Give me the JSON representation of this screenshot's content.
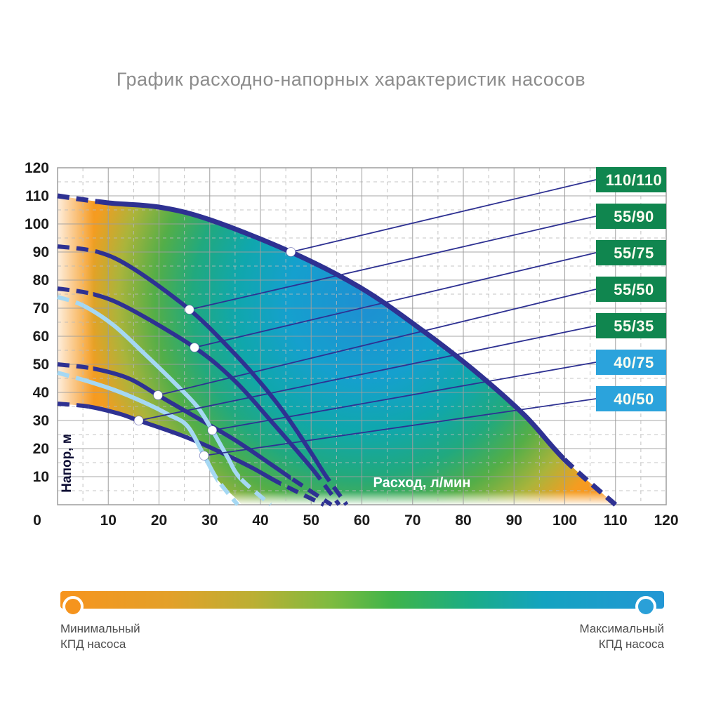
{
  "title": "График расходно-напорных характеристик насосов",
  "colors": {
    "navy_curve": "#2E3192",
    "light_blue_curve": "#A5D8F3",
    "legend_green": "#10864F",
    "legend_blue": "#2BA3DC",
    "legend_text": "#FDFDF0",
    "grid_major": "#9E9E9E",
    "grid_minor": "#BABABA",
    "tick_text": "#1A1A1A",
    "y_axis_label_color": "#0D0D33",
    "x_axis_label_color": "#FFFFFF",
    "title_gray": "#8C8C8C",
    "marker_fill": "#FFFFFF",
    "min_dot_orange": "#F5941E",
    "max_dot_blue": "#2AA0D8"
  },
  "axes": {
    "x": {
      "label": "Расход, л/мин",
      "range": [
        0,
        120
      ],
      "ticks": [
        0,
        10,
        20,
        30,
        40,
        50,
        60,
        70,
        80,
        90,
        100,
        110,
        120
      ],
      "minor_step": 5
    },
    "y": {
      "label": "Напор, м",
      "range": [
        0,
        120
      ],
      "ticks": [
        10,
        20,
        30,
        40,
        50,
        60,
        70,
        80,
        90,
        100,
        110,
        120
      ],
      "minor_step": 5
    }
  },
  "legend": [
    {
      "label": "110/110",
      "color": "green"
    },
    {
      "label": "55/90",
      "color": "green"
    },
    {
      "label": "55/75",
      "color": "green"
    },
    {
      "label": "55/50",
      "color": "green"
    },
    {
      "label": "55/35",
      "color": "green"
    },
    {
      "label": "40/75",
      "color": "blue"
    },
    {
      "label": "40/50",
      "color": "blue"
    }
  ],
  "chart_data": {
    "type": "line",
    "title": "График расходно-напорных характеристик насосов",
    "xlabel": "Расход, л/мин",
    "ylabel": "Напор, м",
    "x_range": [
      0,
      120
    ],
    "y_range": [
      0,
      120
    ],
    "grid": "on",
    "legend_position": "right",
    "series": [
      {
        "name": "110/110",
        "group": "green",
        "dash_head_until": 8,
        "dash_tail_from": 100,
        "marker": [
          46,
          90
        ],
        "points": [
          [
            0,
            110
          ],
          [
            10,
            107.5
          ],
          [
            20,
            106
          ],
          [
            30,
            101.5
          ],
          [
            46,
            90
          ],
          [
            60,
            77
          ],
          [
            72,
            62
          ],
          [
            82,
            48
          ],
          [
            92,
            32
          ],
          [
            100,
            16
          ],
          [
            110,
            0
          ]
        ]
      },
      {
        "name": "55/90",
        "group": "green",
        "dash_head_until": 8,
        "dash_tail_from": 53,
        "marker": [
          26,
          69.5
        ],
        "points": [
          [
            0,
            92
          ],
          [
            8,
            90
          ],
          [
            15,
            84
          ],
          [
            26,
            69.5
          ],
          [
            34,
            55.5
          ],
          [
            40,
            43.5
          ],
          [
            45,
            32
          ],
          [
            50,
            18.5
          ],
          [
            53,
            10
          ],
          [
            57,
            0
          ]
        ]
      },
      {
        "name": "55/75",
        "group": "green",
        "dash_head_until": 7,
        "dash_tail_from": 51,
        "marker": [
          27,
          56
        ],
        "points": [
          [
            0,
            77
          ],
          [
            7,
            75
          ],
          [
            14,
            70
          ],
          [
            27,
            56
          ],
          [
            35,
            44
          ],
          [
            42,
            30
          ],
          [
            48,
            17.5
          ],
          [
            51,
            11
          ],
          [
            55.5,
            0
          ]
        ]
      },
      {
        "name": "55/50",
        "group": "green",
        "dash_head_until": 7,
        "dash_tail_from": 46,
        "marker": [
          19.8,
          39
        ],
        "points": [
          [
            0,
            50
          ],
          [
            7,
            48.5
          ],
          [
            14,
            45
          ],
          [
            19.8,
            39
          ],
          [
            27,
            31.5
          ],
          [
            35,
            23
          ],
          [
            42,
            14.5
          ],
          [
            46,
            9.5
          ],
          [
            54,
            0
          ]
        ]
      },
      {
        "name": "55/35",
        "group": "green",
        "dash_head_until": 6,
        "dash_tail_from": 44,
        "marker": [
          16,
          30
        ],
        "points": [
          [
            0,
            36
          ],
          [
            6,
            35
          ],
          [
            12,
            32.5
          ],
          [
            16,
            30
          ],
          [
            24,
            25
          ],
          [
            30,
            20.5
          ],
          [
            38,
            13.5
          ],
          [
            44,
            7.5
          ],
          [
            52.5,
            0
          ]
        ]
      },
      {
        "name": "40/75",
        "group": "blue",
        "dash_head_until": 5,
        "dash_tail_from": 36,
        "marker": [
          30.5,
          26.5
        ],
        "points": [
          [
            0,
            74
          ],
          [
            5,
            71
          ],
          [
            11,
            64
          ],
          [
            17,
            54
          ],
          [
            23,
            43.5
          ],
          [
            27.5,
            35
          ],
          [
            30.5,
            26.5
          ],
          [
            33.5,
            17
          ],
          [
            36,
            9.5
          ],
          [
            42,
            0
          ]
        ]
      },
      {
        "name": "40/50",
        "group": "blue",
        "dash_head_until": 5,
        "dash_tail_from": 31.5,
        "marker": [
          28.9,
          17.5
        ],
        "points": [
          [
            0,
            47
          ],
          [
            5,
            44.5
          ],
          [
            11,
            41
          ],
          [
            17,
            36.5
          ],
          [
            22,
            32
          ],
          [
            25.6,
            28
          ],
          [
            28.9,
            17.5
          ],
          [
            31.5,
            9
          ],
          [
            35.5,
            0
          ]
        ]
      }
    ],
    "efficiency_region": {
      "boundary": [
        [
          0,
          110
        ],
        [
          10,
          107.5
        ],
        [
          20,
          106
        ],
        [
          30,
          101.5
        ],
        [
          46,
          90
        ],
        [
          60,
          77
        ],
        [
          72,
          62
        ],
        [
          82,
          48
        ],
        [
          92,
          32
        ],
        [
          100,
          16
        ],
        [
          110,
          0
        ],
        [
          110,
          0
        ],
        [
          36.5,
          0
        ],
        [
          36.5,
          0
        ],
        [
          31.5,
          9
        ],
        [
          28.9,
          17.5
        ],
        [
          26.5,
          24
        ],
        [
          24,
          25
        ],
        [
          16,
          30
        ],
        [
          12,
          32.5
        ],
        [
          6,
          35
        ],
        [
          0,
          36
        ]
      ],
      "gradient_stops": [
        [
          "0",
          "#1E8FD2"
        ],
        [
          "0.25",
          "#15A0CE"
        ],
        [
          "0.42",
          "#10A7AC"
        ],
        [
          "0.56",
          "#21A97E"
        ],
        [
          "0.68",
          "#53AE48"
        ],
        [
          "0.8",
          "#ABB43B"
        ],
        [
          "0.91",
          "#F59C20"
        ],
        [
          "1",
          "#F7941E"
        ]
      ]
    }
  },
  "colorbar": {
    "gradient_stops": [
      [
        "0",
        "#F7941E"
      ],
      [
        "0.18",
        "#E3A029"
      ],
      [
        "0.32",
        "#BBAF33"
      ],
      [
        "0.45",
        "#7DBB40"
      ],
      [
        "0.55",
        "#3FB44A"
      ],
      [
        "0.68",
        "#1AAD86"
      ],
      [
        "0.8",
        "#14A3C0"
      ],
      [
        "1",
        "#2397D5"
      ]
    ],
    "min_label_line1": "Минимальный",
    "min_label_line2": "КПД насоса",
    "max_label_line1": "Максимальный",
    "max_label_line2": "КПД насоса"
  }
}
